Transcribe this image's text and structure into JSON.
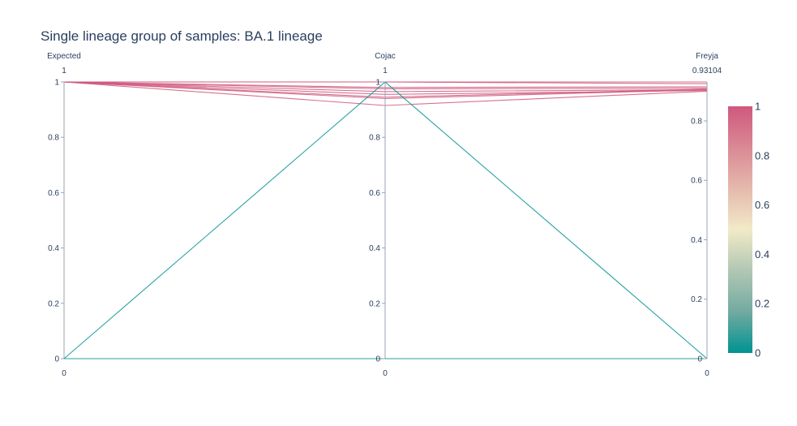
{
  "chart_data": {
    "type": "parallel_coordinates",
    "title": "Single lineage group of samples: BA.1 lineage",
    "dimensions": [
      {
        "label": "Expected",
        "range": [
          0,
          1
        ],
        "range_min_label": "0",
        "range_max_label": "1",
        "ticks": [
          "0",
          "0.2",
          "0.4",
          "0.6",
          "0.8",
          "1"
        ],
        "tick_values": [
          0,
          0.2,
          0.4,
          0.6,
          0.8,
          1
        ]
      },
      {
        "label": "Cojac",
        "range": [
          0,
          1
        ],
        "range_min_label": "0",
        "range_max_label": "1",
        "ticks": [
          "0",
          "0.2",
          "0.4",
          "0.6",
          "0.8",
          "1"
        ],
        "tick_values": [
          0,
          0.2,
          0.4,
          0.6,
          0.8,
          1
        ]
      },
      {
        "label": "Freyja",
        "range": [
          0,
          0.93104
        ],
        "range_min_label": "0",
        "range_max_label": "0.93104",
        "ticks": [
          "0",
          "0.2",
          "0.4",
          "0.6",
          "0.8"
        ],
        "tick_values": [
          0,
          0.2,
          0.4,
          0.6,
          0.8
        ]
      }
    ],
    "lines": [
      {
        "values": [
          1,
          1,
          0.93104
        ],
        "color": 1
      },
      {
        "values": [
          1,
          1,
          0.925
        ],
        "color": 1
      },
      {
        "values": [
          1,
          0.98,
          0.915
        ],
        "color": 1
      },
      {
        "values": [
          1,
          0.975,
          0.91
        ],
        "color": 1
      },
      {
        "values": [
          1,
          0.965,
          0.905
        ],
        "color": 1
      },
      {
        "values": [
          1,
          0.955,
          0.902
        ],
        "color": 1
      },
      {
        "values": [
          1,
          0.945,
          0.907
        ],
        "color": 1
      },
      {
        "values": [
          1,
          0.94,
          0.905
        ],
        "color": 1
      },
      {
        "values": [
          1,
          0.915,
          0.9
        ],
        "color": 1
      },
      {
        "values": [
          0,
          1,
          0
        ],
        "color": 0
      },
      {
        "values": [
          0,
          0,
          0
        ],
        "color": 0
      }
    ],
    "colorscale": {
      "range": [
        0,
        1
      ],
      "ticks": [
        "0",
        "0.2",
        "0.4",
        "0.6",
        "0.8",
        "1"
      ],
      "tick_values": [
        0,
        0.2,
        0.4,
        0.6,
        0.8,
        1
      ],
      "stops": [
        "#009392",
        "#72aaa1",
        "#b1c7b3",
        "#f1eac8",
        "#e5b9ad",
        "#d98994",
        "#d0587e"
      ]
    }
  }
}
